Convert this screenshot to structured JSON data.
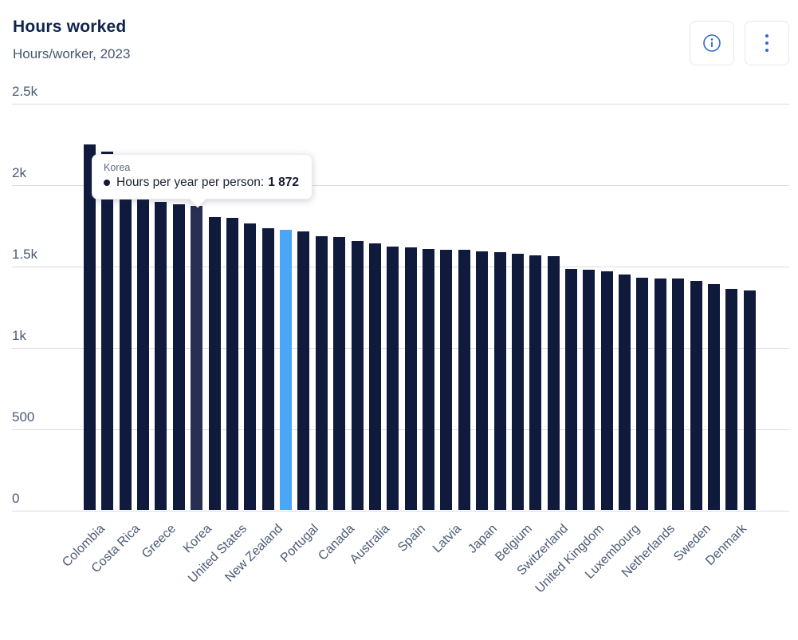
{
  "header": {
    "title": "Hours worked",
    "subtitle": "Hours/worker, 2023"
  },
  "toolbar": {
    "info_button": "info",
    "menu_button": "more options"
  },
  "tooltip": {
    "country": "Korea",
    "metric_label": "Hours per year per person:",
    "value": "1 872"
  },
  "colors": {
    "bar": "#0f1a3c",
    "bar_hovered": "#272f52",
    "bar_highlighted": "#4ba6f8",
    "title_text": "#10244e",
    "axis_text": "#4b5a74",
    "gridline": "#d9dce2",
    "button_icon": "#2e6bce"
  },
  "chart_data": {
    "type": "bar",
    "title": "Hours worked",
    "subtitle": "Hours/worker, 2023",
    "xlabel": "",
    "ylabel": "Hours per year per person",
    "ylim": [
      0,
      2500
    ],
    "grid": "horizontal",
    "legend": "none",
    "yticks": [
      {
        "value": 0,
        "label": "0"
      },
      {
        "value": 500,
        "label": "500"
      },
      {
        "value": 1000,
        "label": "1k"
      },
      {
        "value": 1500,
        "label": "1.5k"
      },
      {
        "value": 2000,
        "label": "2k"
      },
      {
        "value": 2500,
        "label": "2.5k"
      }
    ],
    "categories": [
      "Colombia",
      "",
      "Costa Rica",
      "",
      "Greece",
      "",
      "Korea",
      "",
      "United States",
      "",
      "New Zealand",
      "",
      "Portugal",
      "",
      "Canada",
      "",
      "Australia",
      "",
      "Spain",
      "",
      "Latvia",
      "",
      "Japan",
      "",
      "Belgium",
      "",
      "Switzerland",
      "",
      "United Kingdom",
      "",
      "Luxembourg",
      "",
      "Netherlands",
      "",
      "Sweden",
      "",
      "Denmark",
      ""
    ],
    "values": [
      2250,
      2207,
      2171,
      1953,
      1897,
      1880,
      1872,
      1803,
      1799,
      1763,
      1735,
      1725,
      1716,
      1686,
      1680,
      1655,
      1640,
      1622,
      1617,
      1609,
      1605,
      1602,
      1593,
      1586,
      1578,
      1570,
      1564,
      1483,
      1480,
      1473,
      1449,
      1432,
      1427,
      1425,
      1410,
      1390,
      1361,
      1353
    ],
    "hovered_index": 6,
    "highlighted_index": 11,
    "note_unlabeled_bars": "every second bar has no axis label in the pixels"
  }
}
